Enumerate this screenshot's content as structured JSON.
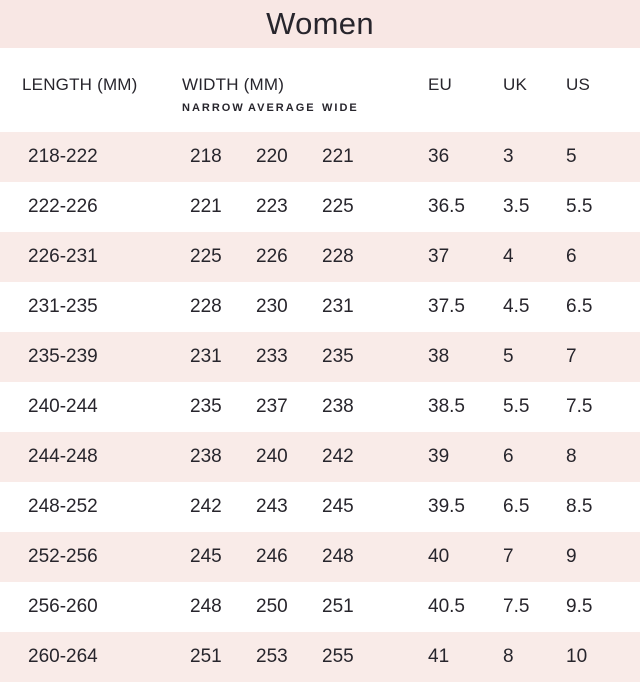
{
  "title": "Women",
  "colors": {
    "banner_bg": "#f8e7e4",
    "row_alt_bg": "#f9ebe8",
    "text": "#27252c",
    "page_bg": "#ffffff"
  },
  "table": {
    "headers": {
      "length": "LENGTH (MM)",
      "width": "WIDTH (MM)",
      "eu": "EU",
      "uk": "UK",
      "us": "US"
    },
    "subheaders": {
      "narrow": "NARROW",
      "average": "AVERAGE",
      "wide": "WIDE"
    },
    "rows": [
      {
        "length": "218-222",
        "narrow": "218",
        "average": "220",
        "wide": "221",
        "eu": "36",
        "uk": "3",
        "us": "5"
      },
      {
        "length": "222-226",
        "narrow": "221",
        "average": "223",
        "wide": "225",
        "eu": "36.5",
        "uk": "3.5",
        "us": "5.5"
      },
      {
        "length": "226-231",
        "narrow": "225",
        "average": "226",
        "wide": "228",
        "eu": "37",
        "uk": "4",
        "us": "6"
      },
      {
        "length": "231-235",
        "narrow": "228",
        "average": "230",
        "wide": "231",
        "eu": "37.5",
        "uk": "4.5",
        "us": "6.5"
      },
      {
        "length": "235-239",
        "narrow": "231",
        "average": "233",
        "wide": "235",
        "eu": "38",
        "uk": "5",
        "us": "7"
      },
      {
        "length": "240-244",
        "narrow": "235",
        "average": "237",
        "wide": "238",
        "eu": "38.5",
        "uk": "5.5",
        "us": "7.5"
      },
      {
        "length": "244-248",
        "narrow": "238",
        "average": "240",
        "wide": "242",
        "eu": "39",
        "uk": "6",
        "us": "8"
      },
      {
        "length": "248-252",
        "narrow": "242",
        "average": "243",
        "wide": "245",
        "eu": "39.5",
        "uk": "6.5",
        "us": "8.5"
      },
      {
        "length": "252-256",
        "narrow": "245",
        "average": "246",
        "wide": "248",
        "eu": "40",
        "uk": "7",
        "us": "9"
      },
      {
        "length": "256-260",
        "narrow": "248",
        "average": "250",
        "wide": "251",
        "eu": "40.5",
        "uk": "7.5",
        "us": "9.5"
      },
      {
        "length": "260-264",
        "narrow": "251",
        "average": "253",
        "wide": "255",
        "eu": "41",
        "uk": "8",
        "us": "10"
      }
    ]
  }
}
